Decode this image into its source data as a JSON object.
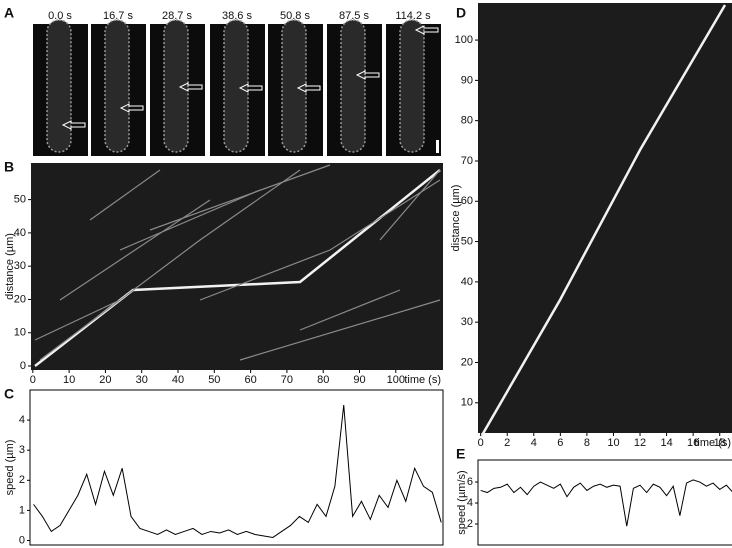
{
  "panel_a": {
    "label": "A",
    "times": [
      "0.0 s",
      "16.7 s",
      "28.7 s",
      "38.6 s",
      "50.8 s",
      "87.5 s",
      "114.2 s"
    ]
  },
  "chart_data": [
    {
      "type": "kymograph",
      "panel_label": "B",
      "xlabel": "time (s)",
      "ylabel": "distance (µm)",
      "xlim": [
        -0.5,
        113
      ],
      "ylim": [
        -1.2,
        61
      ],
      "xticks": [
        0,
        10,
        20,
        30,
        40,
        50,
        60,
        70,
        80,
        90,
        100
      ],
      "yticks": [
        0,
        10,
        20,
        30,
        40,
        50
      ]
    },
    {
      "type": "line",
      "panel_label": "C",
      "ylabel": "speed (µm)",
      "color": "#000000",
      "x": [
        0,
        2.5,
        5,
        7.5,
        10,
        12.5,
        15,
        17.5,
        20,
        22.5,
        25,
        27.5,
        30,
        32.5,
        35,
        37.5,
        40,
        42.5,
        45,
        47.5,
        50,
        52.5,
        55,
        57.5,
        60,
        62.5,
        65,
        67.5,
        70,
        72.5,
        75,
        77.5,
        80,
        82.5,
        85,
        87.5,
        90,
        92.5,
        95,
        97.5,
        100,
        102.5,
        105,
        107.5,
        110,
        112.5,
        115
      ],
      "values": [
        1.2,
        0.8,
        0.3,
        0.5,
        1.0,
        1.5,
        2.2,
        1.2,
        2.3,
        1.5,
        2.4,
        0.8,
        0.4,
        0.3,
        0.2,
        0.35,
        0.2,
        0.3,
        0.4,
        0.2,
        0.3,
        0.25,
        0.35,
        0.2,
        0.3,
        0.2,
        0.15,
        0.1,
        0.3,
        0.5,
        0.8,
        0.6,
        1.2,
        0.8,
        1.8,
        4.5,
        0.8,
        1.3,
        0.7,
        1.5,
        1.1,
        2.0,
        1.3,
        2.4,
        1.8,
        1.6,
        0.6
      ],
      "xlim": [
        -1,
        115.5
      ],
      "ylim": [
        -0.15,
        5.0
      ],
      "yticks": [
        0,
        1,
        2,
        3,
        4
      ]
    },
    {
      "type": "kymograph",
      "panel_label": "D",
      "xlabel": "time (s)",
      "ylabel": "distance (µm)",
      "xlim": [
        -0.2,
        19.0
      ],
      "ylim": [
        2.5,
        109.2
      ],
      "xticks": [
        0,
        2,
        4,
        6,
        8,
        10,
        12,
        14,
        16,
        18
      ],
      "yticks": [
        10,
        20,
        30,
        40,
        50,
        60,
        70,
        80,
        90,
        100
      ]
    },
    {
      "type": "line",
      "panel_label": "E",
      "ylabel": "speed (µm/s)",
      "color": "#000000",
      "x": [
        0,
        0.5,
        1,
        1.5,
        2,
        2.5,
        3,
        3.5,
        4,
        4.5,
        5,
        5.5,
        6,
        6.5,
        7,
        7.5,
        8,
        8.5,
        9,
        9.5,
        10,
        10.5,
        11,
        11.5,
        12,
        12.5,
        13,
        13.5,
        14,
        14.5,
        15,
        15.5,
        16,
        16.5,
        17,
        17.5,
        18,
        18.5,
        19
      ],
      "values": [
        5.2,
        5.0,
        5.4,
        5.5,
        5.8,
        5.0,
        5.5,
        4.8,
        5.6,
        6.0,
        5.7,
        5.4,
        5.8,
        4.6,
        5.5,
        5.9,
        5.2,
        5.6,
        5.8,
        5.5,
        5.7,
        5.6,
        1.8,
        5.4,
        5.7,
        5.0,
        5.8,
        5.5,
        4.7,
        5.6,
        2.8,
        5.9,
        6.2,
        6.0,
        5.6,
        5.9,
        5.3,
        5.7,
        5.0
      ],
      "xlim": [
        -0.2,
        19.0
      ],
      "ylim": [
        0,
        8.1
      ],
      "yticks": [
        2,
        4,
        6
      ]
    }
  ]
}
